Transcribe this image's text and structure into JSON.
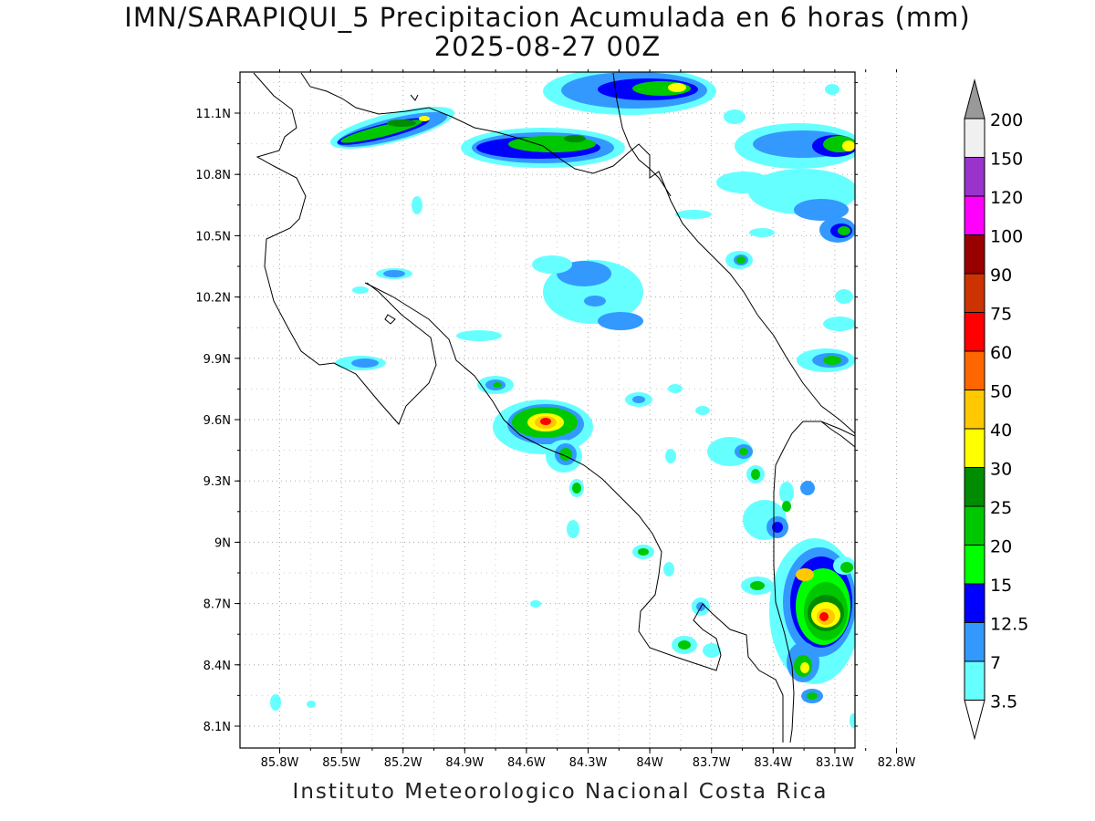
{
  "title": {
    "line1": "IMN/SARAPIQUI_5 Precipitacion Acumulada en 6 horas (mm)",
    "line2": "2025-08-27 00Z"
  },
  "footer": "Instituto Meteorologico Nacional Costa Rica",
  "axes": {
    "lon_ticks": [
      "85.8W",
      "85.5W",
      "85.2W",
      "84.9W",
      "84.6W",
      "84.3W",
      "84W",
      "83.7W",
      "83.4W",
      "83.1W",
      "82.8W"
    ],
    "lat_ticks": [
      "11.1N",
      "10.8N",
      "10.5N",
      "10.2N",
      "9.9N",
      "9.6N",
      "9.3N",
      "9N",
      "8.7N",
      "8.4N",
      "8.1N"
    ],
    "grid": true
  },
  "colorbar": {
    "levels": [
      "3.5",
      "7",
      "12.5",
      "15",
      "20",
      "25",
      "30",
      "40",
      "50",
      "60",
      "75",
      "90",
      "100",
      "120",
      "150",
      "200"
    ],
    "colors": [
      "#66ffff",
      "#3399ff",
      "#0000ff",
      "#00ff00",
      "#00c800",
      "#008c00",
      "#ffff00",
      "#ffc800",
      "#ff6600",
      "#ff0000",
      "#cc3300",
      "#990000",
      "#ff00ff",
      "#9933cc",
      "#f0f0f0",
      "#999999"
    ]
  }
}
